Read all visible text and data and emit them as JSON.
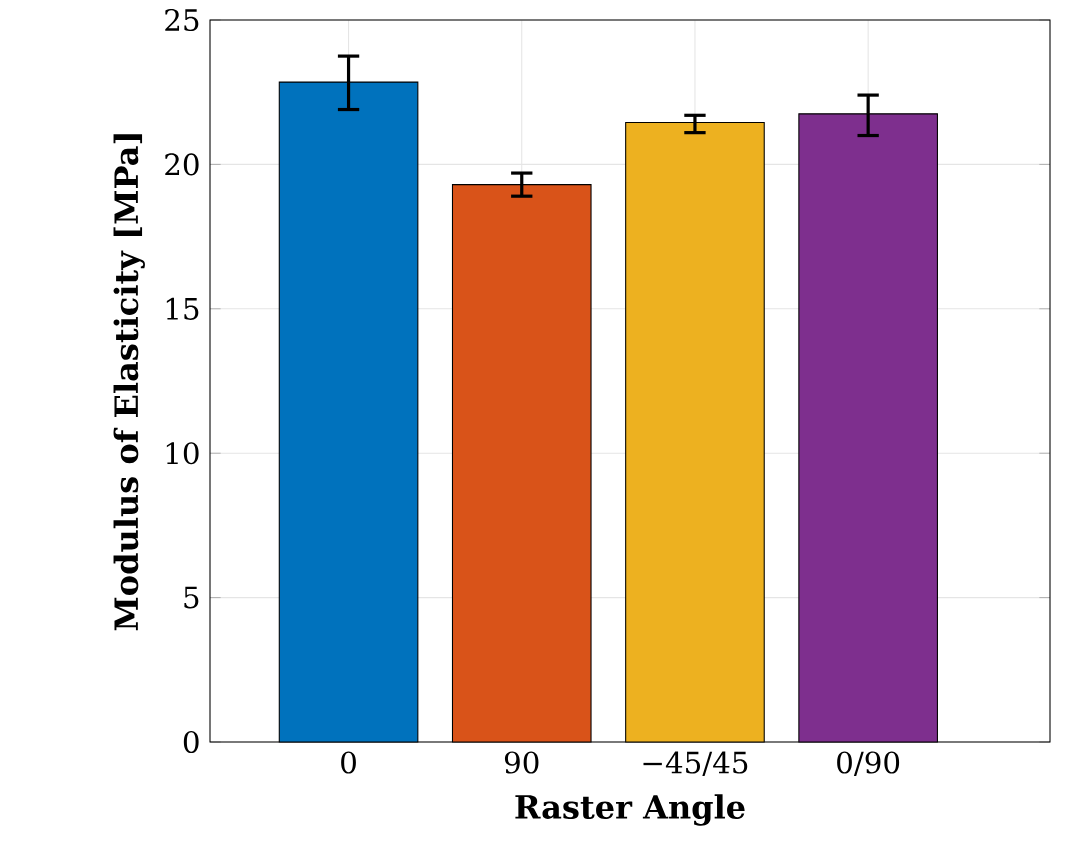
{
  "chart_data": {
    "type": "bar",
    "xlabel": "Raster Angle",
    "ylabel": "Modulus of Elasticity [MPa]",
    "categories": [
      "0",
      "90",
      "−45/45",
      "0/90"
    ],
    "values": [
      22.85,
      19.3,
      21.45,
      21.75
    ],
    "colors": [
      "#0072bd",
      "#d95319",
      "#edb120",
      "#7e2f8e"
    ],
    "errors": [
      [
        21.9,
        23.75
      ],
      [
        18.9,
        19.7
      ],
      [
        21.1,
        21.7
      ],
      [
        21.0,
        22.4
      ]
    ],
    "ylim": [
      0,
      25
    ],
    "yticks": [
      0,
      5,
      10,
      15,
      20,
      25
    ],
    "grid": true
  }
}
